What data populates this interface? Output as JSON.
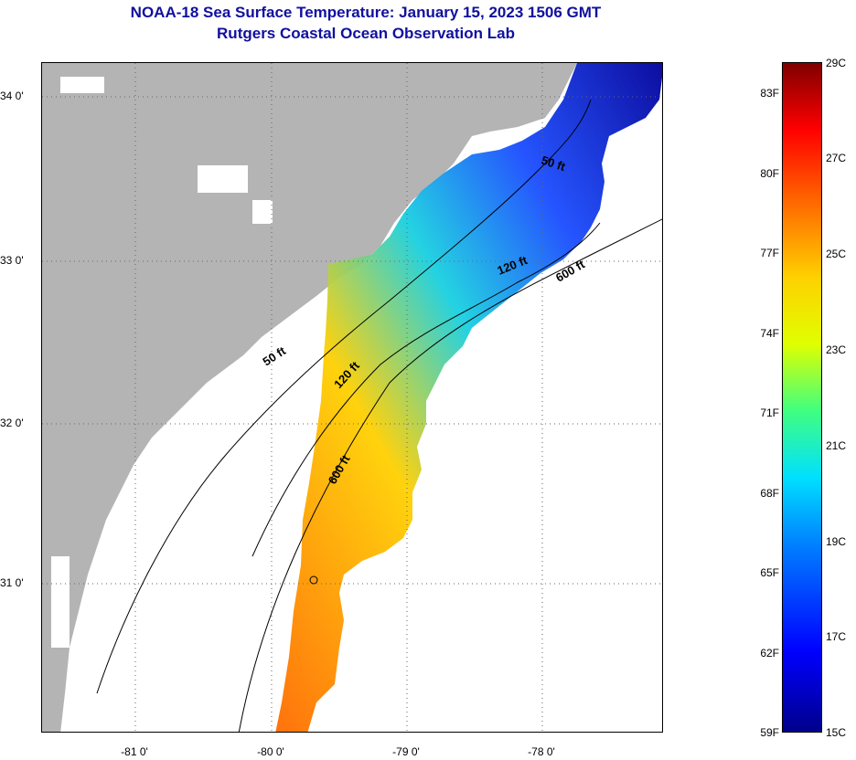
{
  "header": {
    "title": "NOAA-18 Sea Surface Temperature:  January 15, 2023 1506 GMT",
    "subtitle": "Rutgers Coastal Ocean Observation Lab"
  },
  "map": {
    "lat_labels": [
      "34 0'",
      "33 0'",
      "32 0'",
      "31 0'"
    ],
    "lon_labels": [
      "-81 0'",
      "-80 0'",
      "-79 0'",
      "-78 0'"
    ],
    "contour_labels": [
      "50 ft",
      "120 ft",
      "600 ft",
      "50 ft",
      "120 ft",
      "600 ft"
    ],
    "colors": {
      "land": "#b4b4b4",
      "no_data": "#ffffff"
    }
  },
  "colorbar": {
    "fahrenheit": [
      "83F",
      "80F",
      "77F",
      "74F",
      "71F",
      "68F",
      "65F",
      "62F",
      "59F"
    ],
    "celsius": [
      "29C",
      "27C",
      "25C",
      "23C",
      "21C",
      "19C",
      "17C",
      "15C"
    ],
    "range_c": [
      15,
      29
    ]
  }
}
